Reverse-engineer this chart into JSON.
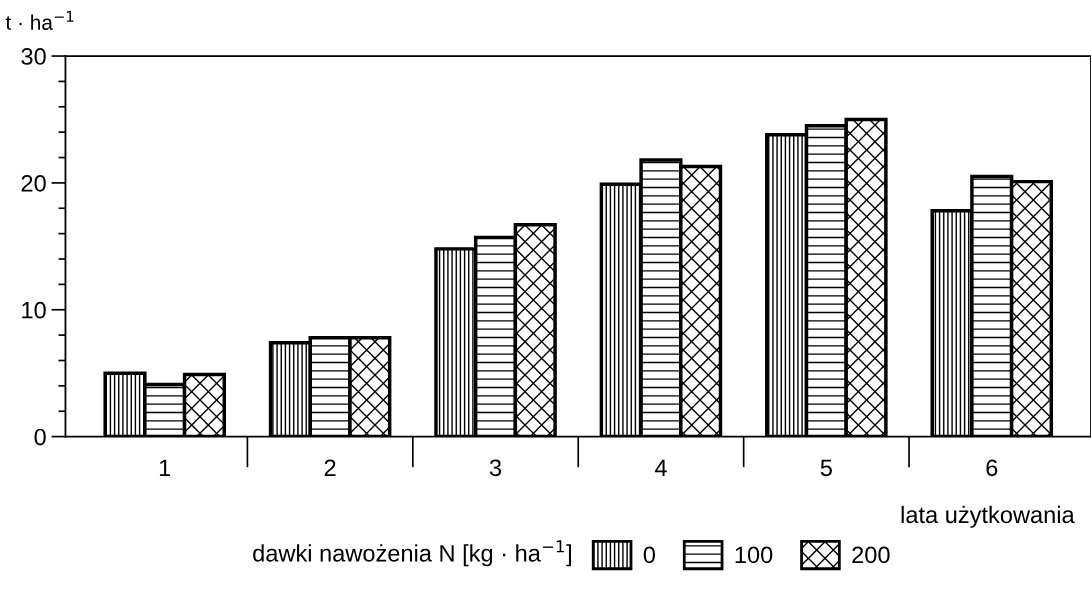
{
  "chart_data": {
    "type": "bar",
    "ylabel": "t · ha$^{−1}$",
    "xlabel": "lata użytkowania",
    "legend_title": "dawki nawożenia N [kg · ha$^{−1}$]",
    "categories": [
      "1",
      "2",
      "3",
      "4",
      "5",
      "6"
    ],
    "series": [
      {
        "name": "0",
        "color": "#000000",
        "values": [
          5.0,
          7.4,
          14.8,
          19.9,
          23.8,
          17.8
        ]
      },
      {
        "name": "100",
        "color": "#000000",
        "values": [
          4.1,
          7.8,
          15.7,
          21.8,
          24.5,
          20.5
        ]
      },
      {
        "name": "200",
        "color": "#000000",
        "values": [
          4.9,
          7.8,
          16.7,
          21.3,
          25.0,
          20.1
        ]
      }
    ],
    "ylim": [
      0,
      30
    ],
    "yticks": [
      0,
      {
        "value": 2,
        "label": null
      },
      {
        "value": 4,
        "label": null
      },
      {
        "value": 6,
        "label": null
      },
      {
        "value": 8,
        "label": null
      },
      10,
      {
        "value": 12,
        "label": null
      },
      {
        "value": 14,
        "label": null
      },
      {
        "value": 16,
        "label": null
      },
      {
        "value": 18,
        "label": null
      },
      20,
      {
        "value": 22,
        "label": null
      },
      {
        "value": 24,
        "label": null
      },
      {
        "value": 26,
        "label": null
      },
      {
        "value": 28,
        "label": null
      },
      30
    ],
    "grid": false,
    "legend": "bottom"
  }
}
